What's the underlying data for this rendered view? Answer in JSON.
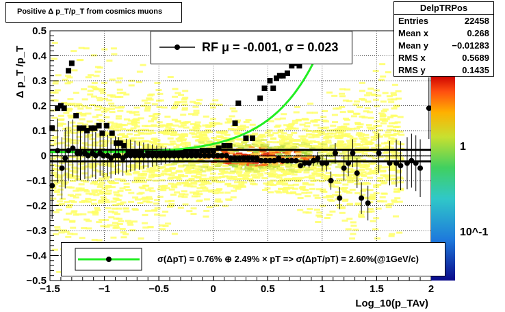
{
  "title": "Positive Δ p_T/p_T from cosmics muons",
  "stats": {
    "name": "DelpTRPos",
    "rows": [
      {
        "label": "Entries",
        "value": "22458"
      },
      {
        "label": "Mean x",
        "value": "0.268"
      },
      {
        "label": "Mean y",
        "value": "−0.01283"
      },
      {
        "label": "RMS x",
        "value": "0.5689"
      },
      {
        "label": "RMS y",
        "value": "0.1435"
      }
    ]
  },
  "fit_legend": "RF μ = -0.001, σ =   0.023",
  "resolution_legend": "σ(ΔpT) =  0.76% ⊕  2.49% × pT => σ(ΔpT/pT) =  2.60%(@1GeV/c)",
  "colors": {
    "points": "#000000",
    "fit_curve": "#22ee22",
    "band": "#000000"
  },
  "chart_data": {
    "type": "scatter",
    "xlabel": "Log_10(p_TAv)",
    "ylabel": "Δ p_T /p_T",
    "xlim": [
      -1.5,
      2.0
    ],
    "ylim": [
      -0.5,
      0.5
    ],
    "x_ticks": [
      "−1.5",
      "−1",
      "−0.5",
      "0",
      "0.5",
      "1",
      "1.5",
      "2"
    ],
    "y_ticks": [
      "−0.5",
      "−0.4",
      "−0.3",
      "−0.2",
      "−0.1",
      "0",
      "0.1",
      "0.2",
      "0.3",
      "0.4",
      "0.5"
    ],
    "grid": true,
    "z_ticks": [
      "1",
      "10^-1"
    ],
    "rms_markers": [
      [
        -1.48,
        0.11
      ],
      [
        -1.43,
        0.19
      ],
      [
        -1.4,
        0.2
      ],
      [
        -1.37,
        0.19
      ],
      [
        -1.33,
        0.34
      ],
      [
        -1.3,
        0.37
      ],
      [
        -1.26,
        0.16
      ],
      [
        -1.23,
        0.11
      ],
      [
        -1.19,
        0.11
      ],
      [
        -1.16,
        0.1
      ],
      [
        -1.12,
        0.11
      ],
      [
        -1.09,
        0.11
      ],
      [
        -1.05,
        0.12
      ],
      [
        -1.02,
        0.09
      ],
      [
        -0.98,
        0.12
      ],
      [
        -0.93,
        0.09
      ],
      [
        -0.89,
        0.05
      ],
      [
        -0.86,
        0.05
      ],
      [
        -0.82,
        0.04
      ],
      [
        -0.78,
        0.01
      ],
      [
        -0.74,
        0.01
      ],
      [
        -0.7,
        0.01
      ],
      [
        -0.66,
        0.01
      ],
      [
        -0.6,
        0.01
      ],
      [
        -0.55,
        0.01
      ],
      [
        -0.5,
        0.01
      ],
      [
        -0.45,
        0.01
      ],
      [
        -0.4,
        0.01
      ],
      [
        -0.35,
        0.01
      ],
      [
        -0.3,
        0.01
      ],
      [
        -0.25,
        0.015
      ],
      [
        -0.2,
        0.015
      ],
      [
        -0.15,
        0.015
      ],
      [
        -0.1,
        0.02
      ],
      [
        -0.05,
        0.02
      ],
      [
        0,
        0.02
      ],
      [
        0.05,
        0.03
      ],
      [
        0.1,
        0.04
      ],
      [
        0.15,
        0.04
      ],
      [
        0.2,
        0.13
      ],
      [
        0.23,
        0.21
      ],
      [
        0.3,
        0.07
      ],
      [
        0.36,
        0.07
      ],
      [
        0.43,
        0.23
      ],
      [
        0.47,
        0.27
      ],
      [
        0.52,
        0.3
      ],
      [
        0.55,
        0.27
      ],
      [
        0.58,
        0.31
      ],
      [
        0.61,
        0.32
      ],
      [
        0.64,
        0.32
      ],
      [
        0.68,
        0.33
      ],
      [
        0.72,
        0.36
      ],
      [
        0.75,
        0.37
      ],
      [
        0.79,
        0.36
      ]
    ],
    "mean_markers": [
      [
        -1.48,
        -0.12
      ],
      [
        -1.43,
        0.02
      ],
      [
        -1.39,
        -0.05
      ],
      [
        -1.36,
        -0.01
      ],
      [
        -1.33,
        0.02
      ],
      [
        -1.29,
        0.03
      ],
      [
        -1.25,
        0.01
      ],
      [
        -1.22,
        0.01
      ],
      [
        -1.18,
        0.01
      ],
      [
        -1.15,
        0.0
      ],
      [
        -1.11,
        0.01
      ],
      [
        -1.08,
        0.0
      ],
      [
        -1.04,
        0.01
      ],
      [
        -1.01,
        0.0
      ],
      [
        -0.97,
        0.0
      ],
      [
        -0.94,
        -0.01
      ],
      [
        -0.9,
        0.0
      ],
      [
        -0.87,
        0.0
      ],
      [
        -0.83,
        -0.01
      ],
      [
        -0.8,
        0.0
      ],
      [
        -0.76,
        0.0
      ],
      [
        -0.72,
        0.0
      ],
      [
        -0.68,
        0.0
      ],
      [
        -0.64,
        0.0
      ],
      [
        -0.6,
        0.0
      ],
      [
        -0.56,
        0.0
      ],
      [
        -0.52,
        0.0
      ],
      [
        -0.48,
        0.0
      ],
      [
        -0.44,
        0.0
      ],
      [
        -0.4,
        0.0
      ],
      [
        -0.36,
        0.0
      ],
      [
        -0.32,
        0.0
      ],
      [
        -0.28,
        0.0
      ],
      [
        -0.24,
        0.0
      ],
      [
        -0.2,
        0.0
      ],
      [
        -0.16,
        0.0
      ],
      [
        -0.12,
        0.0
      ],
      [
        -0.08,
        0.0
      ],
      [
        -0.04,
        0.0
      ],
      [
        0.0,
        0.0
      ],
      [
        0.04,
        0.0
      ],
      [
        0.08,
        0.0
      ],
      [
        0.12,
        0.0
      ],
      [
        0.16,
        -0.01
      ],
      [
        0.2,
        -0.01
      ],
      [
        0.24,
        -0.01
      ],
      [
        0.28,
        -0.01
      ],
      [
        0.32,
        -0.01
      ],
      [
        0.36,
        -0.01
      ],
      [
        0.4,
        -0.01
      ],
      [
        0.44,
        -0.02
      ],
      [
        0.48,
        -0.02
      ],
      [
        0.52,
        -0.02
      ],
      [
        0.56,
        -0.02
      ],
      [
        0.6,
        -0.01
      ],
      [
        0.64,
        -0.02
      ],
      [
        0.68,
        -0.02
      ],
      [
        0.72,
        -0.02
      ],
      [
        0.76,
        -0.02
      ],
      [
        0.8,
        -0.04
      ],
      [
        0.84,
        -0.03
      ],
      [
        0.88,
        -0.03
      ],
      [
        0.92,
        -0.02
      ],
      [
        0.96,
        -0.01
      ],
      [
        1.0,
        -0.03
      ],
      [
        1.04,
        -0.03
      ],
      [
        1.08,
        -0.1
      ],
      [
        1.12,
        0.01
      ],
      [
        1.16,
        -0.17
      ],
      [
        1.2,
        -0.05
      ],
      [
        1.24,
        -0.03
      ],
      [
        1.28,
        0.01
      ],
      [
        1.32,
        -0.07
      ],
      [
        1.36,
        -0.17
      ],
      [
        1.42,
        -0.19
      ],
      [
        1.52,
        0.01
      ],
      [
        1.62,
        -0.03
      ],
      [
        1.68,
        -0.03
      ],
      [
        1.72,
        -0.04
      ],
      [
        1.78,
        -0.03
      ],
      [
        1.82,
        -0.02
      ],
      [
        1.86,
        -0.03
      ],
      [
        1.9,
        -0.05
      ],
      [
        1.98,
        0.19
      ]
    ],
    "fit_band": [
      0.023,
      -0.023
    ],
    "fit_mean": -0.001
  }
}
